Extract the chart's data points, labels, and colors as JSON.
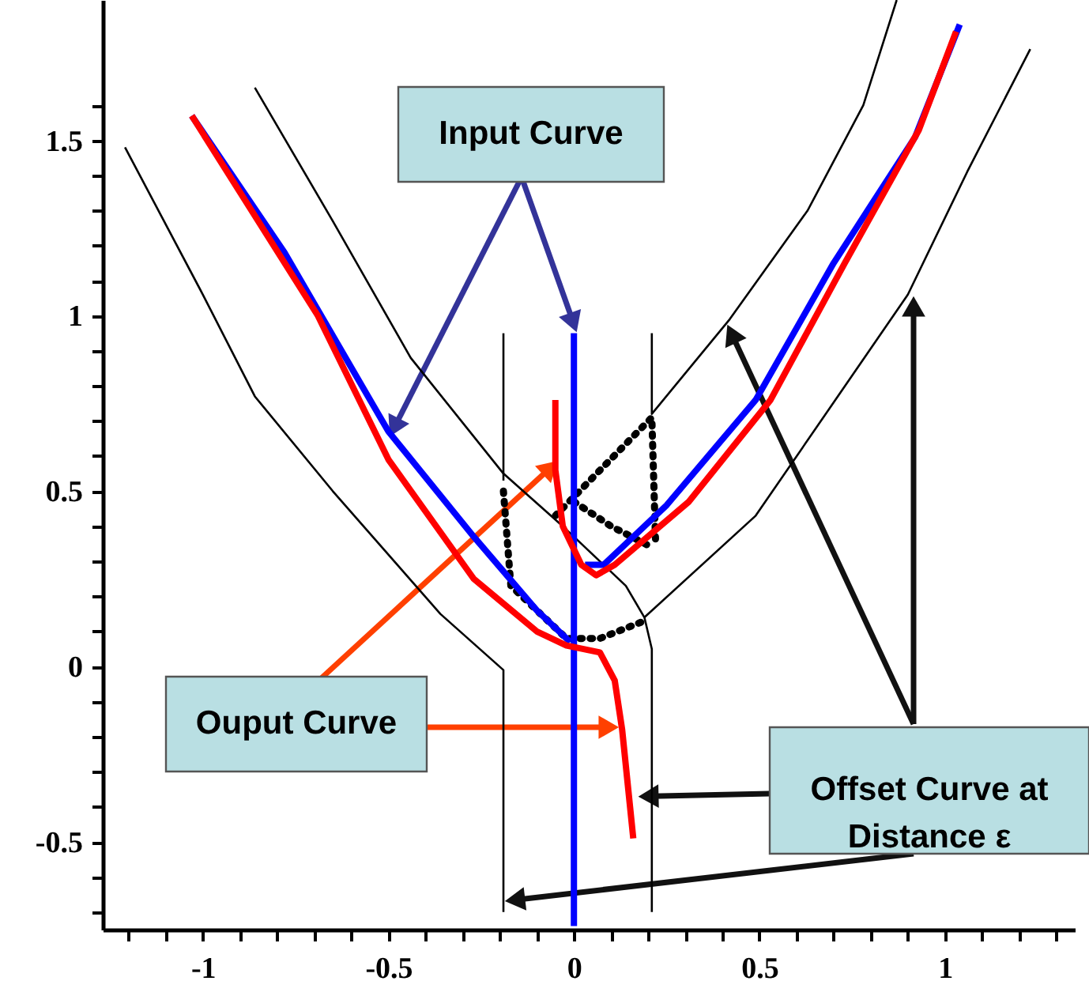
{
  "chart_data": {
    "type": "line",
    "xlim": [
      -1.27,
      1.35
    ],
    "ylim": [
      -0.75,
      1.9
    ],
    "xticks": [
      {
        "value": -1.2,
        "label": null
      },
      {
        "value": -1.1,
        "label": null
      },
      -1,
      {
        "value": -0.9,
        "label": null
      },
      {
        "value": -0.8,
        "label": null
      },
      {
        "value": -0.7,
        "label": null
      },
      {
        "value": -0.6,
        "label": null
      },
      -0.5,
      {
        "value": -0.4,
        "label": null
      },
      {
        "value": -0.3,
        "label": null
      },
      {
        "value": -0.2,
        "label": null
      },
      {
        "value": -0.1,
        "label": null
      },
      0,
      {
        "value": 0.1,
        "label": null
      },
      {
        "value": 0.2,
        "label": null
      },
      {
        "value": 0.3,
        "label": null
      },
      {
        "value": 0.4,
        "label": null
      },
      0.5,
      {
        "value": 0.6,
        "label": null
      },
      {
        "value": 0.7,
        "label": null
      },
      {
        "value": 0.8,
        "label": null
      },
      {
        "value": 0.9,
        "label": null
      },
      1,
      {
        "value": 1.1,
        "label": null
      },
      {
        "value": 1.2,
        "label": null
      },
      {
        "value": 1.3,
        "label": null
      }
    ],
    "yticks": [
      {
        "value": -0.7,
        "label": null
      },
      {
        "value": -0.6,
        "label": null
      },
      -0.5,
      {
        "value": -0.4,
        "label": null
      },
      {
        "value": -0.3,
        "label": null
      },
      {
        "value": -0.2,
        "label": null
      },
      {
        "value": -0.1,
        "label": null
      },
      0,
      {
        "value": 0.1,
        "label": null
      },
      {
        "value": 0.2,
        "label": null
      },
      {
        "value": 0.3,
        "label": null
      },
      {
        "value": 0.4,
        "label": null
      },
      0.5,
      {
        "value": 0.6,
        "label": null
      },
      {
        "value": 0.7,
        "label": null
      },
      {
        "value": 0.8,
        "label": null
      },
      {
        "value": 0.9,
        "label": null
      },
      1,
      {
        "value": 1.1,
        "label": null
      },
      {
        "value": 1.2,
        "label": null
      },
      {
        "value": 1.3,
        "label": null
      },
      {
        "value": 1.4,
        "label": null
      },
      1.5,
      {
        "value": 1.6,
        "label": null
      }
    ],
    "grid": false,
    "annotations": [
      {
        "text": "Input Curve",
        "x": -0.48,
        "y": 0.69
      },
      {
        "text": "Ouput Curve",
        "x": -0.07,
        "y": 0.56
      },
      {
        "text": "Offset Curve at Distance ε",
        "x": 0.21,
        "y": -0.37
      }
    ],
    "series": [
      {
        "color": "#000000",
        "line_style": "solid",
        "x": [
          -1.21,
          -1.0,
          -0.86,
          -0.65,
          -0.36,
          -0.19,
          -0.19
        ],
        "values": [
          1.48,
          1.06,
          0.77,
          0.5,
          0.15,
          -0.01,
          -0.7
        ]
      },
      {
        "color": "#000000",
        "line_style": "solid",
        "x": [
          -0.19,
          -0.19
        ],
        "values": [
          0.95,
          0.53
        ]
      },
      {
        "color": "#000000",
        "line_style": "solid",
        "x": [
          -0.86,
          -0.65,
          -0.44,
          -0.19,
          -0.03,
          0.14,
          0.19,
          0.21,
          0.21
        ],
        "values": [
          1.65,
          1.27,
          0.88,
          0.55,
          0.4,
          0.23,
          0.14,
          0.05,
          -0.7
        ]
      },
      {
        "color": "#000000",
        "line_style": "solid",
        "x": [
          0.19,
          0.49,
          0.9,
          1.06,
          1.23
        ],
        "values": [
          0.14,
          0.43,
          1.06,
          1.41,
          1.76
        ]
      },
      {
        "color": "#000000",
        "line_style": "solid",
        "x": [
          0.21,
          0.21,
          0.42,
          0.63,
          0.78,
          0.87
        ],
        "values": [
          0.95,
          0.72,
          0.99,
          1.3,
          1.6,
          1.9
        ]
      },
      {
        "color": "#000000",
        "line_style": "dotted",
        "x": [
          -0.19,
          -0.17,
          -0.02,
          0.07,
          0.19
        ],
        "values": [
          0.5,
          0.23,
          0.08,
          0.08,
          0.13
        ]
      },
      {
        "color": "#000000",
        "line_style": "dotted",
        "x": [
          -0.05,
          0.21,
          0.22
        ],
        "values": [
          0.43,
          0.71,
          0.36
        ]
      },
      {
        "color": "#000000",
        "line_style": "dotted",
        "x": [
          0.0,
          0.1,
          0.21
        ],
        "values": [
          0.47,
          0.4,
          0.34
        ]
      },
      {
        "color": "#0000ff",
        "line_style": "solid",
        "x": [
          -1.03,
          -0.78,
          -0.5,
          -0.27,
          -0.1,
          -0.01
        ],
        "values": [
          1.57,
          1.18,
          0.67,
          0.37,
          0.16,
          0.07
        ]
      },
      {
        "color": "#0000ff",
        "line_style": "solid",
        "x": [
          0.0,
          0.0
        ],
        "values": [
          0.95,
          -0.74
        ]
      },
      {
        "color": "#0000ff",
        "line_style": "solid",
        "x": [
          0.03,
          0.08,
          0.25,
          0.49,
          0.7,
          0.92,
          1.04
        ],
        "values": [
          0.29,
          0.29,
          0.46,
          0.76,
          1.15,
          1.51,
          1.83
        ]
      },
      {
        "color": "#ff0000",
        "line_style": "solid",
        "x": [
          -1.03,
          -0.69,
          -0.5,
          -0.27,
          -0.1,
          -0.02,
          0.07,
          0.11,
          0.13,
          0.16
        ],
        "values": [
          1.57,
          1.0,
          0.59,
          0.25,
          0.1,
          0.06,
          0.04,
          -0.04,
          -0.18,
          -0.49
        ]
      },
      {
        "color": "#ff0000",
        "line_style": "solid",
        "x": [
          -0.05,
          -0.05,
          -0.03,
          0.02,
          0.06,
          0.11,
          0.31,
          0.53,
          0.73,
          0.93,
          1.03
        ],
        "values": [
          0.76,
          0.56,
          0.4,
          0.29,
          0.26,
          0.29,
          0.47,
          0.76,
          1.15,
          1.53,
          1.81
        ]
      }
    ]
  }
}
